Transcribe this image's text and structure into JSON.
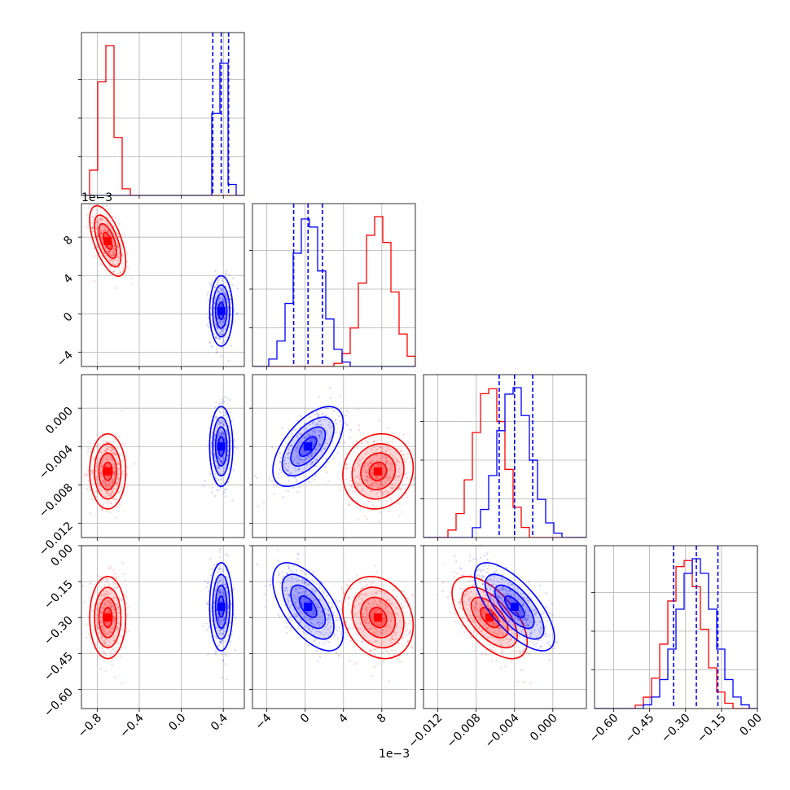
{
  "chart_data": {
    "type": "corner",
    "colors": {
      "red": "#ff0000",
      "blue": "#0000ff",
      "grid": "#b0b0b0"
    },
    "parameters": [
      {
        "key": "p0",
        "range": [
          -0.95,
          0.6
        ],
        "ticks": [
          -0.8,
          -0.4,
          0.0,
          0.4
        ],
        "tick_labels": [
          "−0.8",
          "−0.4",
          "0.0",
          "0.4"
        ]
      },
      {
        "key": "p1",
        "range": [
          -0.0055,
          0.0115
        ],
        "ticks": [
          -0.004,
          0.0,
          0.004,
          0.008
        ],
        "tick_labels": [
          "−4",
          "0",
          "4",
          "8"
        ],
        "offset_text": "1e−3"
      },
      {
        "key": "p2",
        "range": [
          -0.0135,
          0.0035
        ],
        "ticks": [
          -0.012,
          -0.008,
          -0.004,
          0.0
        ],
        "tick_labels": [
          "−0.012",
          "−0.008",
          "−0.004",
          "0.000"
        ]
      },
      {
        "key": "p3",
        "range": [
          -0.68,
          0.0
        ],
        "ticks": [
          -0.6,
          -0.45,
          -0.3,
          -0.15,
          0.0
        ],
        "tick_labels": [
          "−0.60",
          "−0.45",
          "−0.30",
          "−0.15",
          "0.00"
        ]
      }
    ],
    "series": [
      {
        "color": "red",
        "means": [
          -0.7,
          0.0076,
          -0.0066,
          -0.3
        ],
        "sigmas": [
          0.07,
          0.0015,
          0.0016,
          0.07
        ],
        "correlations": {
          "0-1": -0.6,
          "0-2": 0.0,
          "0-3": 0.0,
          "1-2": 0.1,
          "1-3": -0.2,
          "2-3": -0.6
        }
      },
      {
        "color": "blue",
        "means": [
          0.38,
          0.0003,
          -0.004,
          -0.255
        ],
        "sigmas": [
          0.045,
          0.0015,
          0.0017,
          0.075
        ],
        "correlations": {
          "0-1": 0.0,
          "0-2": 0.0,
          "0-3": 0.0,
          "1-2": 0.6,
          "1-3": -0.6,
          "2-3": -0.7
        },
        "quantile_lines": [
          [
            0.3,
            0.38,
            0.45
          ],
          [
            -0.0012,
            0.0003,
            0.0018
          ],
          [
            -0.0056,
            -0.004,
            -0.0021
          ],
          [
            -0.35,
            -0.255,
            -0.165
          ]
        ]
      }
    ]
  }
}
